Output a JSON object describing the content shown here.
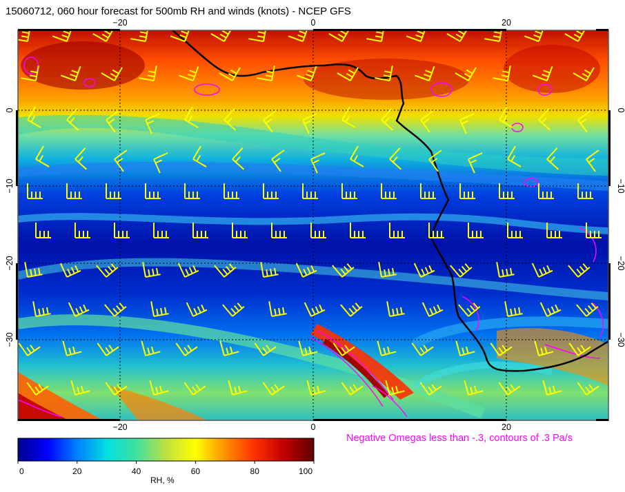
{
  "title": "15060712, 060 hour forecast for 500mb RH and winds (knots) - NCEP GFS",
  "map": {
    "lon_ticks": [
      "−20",
      "0",
      "20"
    ],
    "lat_ticks": [
      "0",
      "−10",
      "−20",
      "−30"
    ],
    "colors": {
      "coastline": "#000000",
      "barbs": "#ffff00",
      "omega_contours": "#ff00ff"
    }
  },
  "omega_note": "Negative Omegas less than -.3, contours of .3 Pa/s",
  "colorbar": {
    "label": "RH, %",
    "ticks": [
      "0",
      "20",
      "40",
      "60",
      "80",
      "100"
    ],
    "stops": [
      "#00008b",
      "#0000ff",
      "#0080ff",
      "#00e0e0",
      "#40e0a0",
      "#c0e040",
      "#ffff00",
      "#ff9000",
      "#ff3000",
      "#c00000",
      "#600000"
    ]
  }
}
